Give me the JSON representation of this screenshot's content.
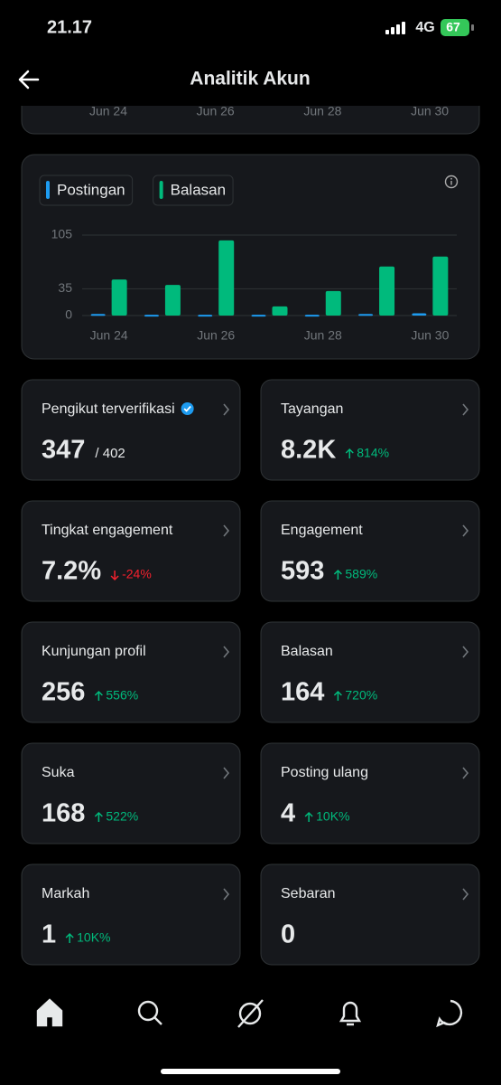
{
  "status_bar": {
    "time": "21.17",
    "network": "4G",
    "battery": "67"
  },
  "header": {
    "title": "Analitik Akun"
  },
  "top_card": {
    "categories": [
      "Jun 24",
      "Jun 26",
      "Jun 28",
      "Jun 30"
    ]
  },
  "chart_data": {
    "type": "bar",
    "categories": [
      "Jun 24",
      null,
      "Jun 26",
      null,
      "Jun 28",
      null,
      "Jun 30"
    ],
    "series": [
      {
        "name": "Postingan",
        "color": "#1d9bf0",
        "values": [
          2,
          1,
          1,
          1,
          1,
          2,
          3
        ]
      },
      {
        "name": "Balasan",
        "color": "#00ba7c",
        "values": [
          47,
          40,
          98,
          12,
          32,
          64,
          77
        ]
      }
    ],
    "ylim": [
      0,
      105
    ],
    "yticks": [
      0,
      35,
      105
    ],
    "grid": true
  },
  "metrics": [
    {
      "label": "Pengikut terverifikasi",
      "value": "347",
      "sub": "/ 402",
      "verified": true
    },
    {
      "label": "Tayangan",
      "value": "8.2K",
      "change": "814%",
      "trend": "up"
    },
    {
      "label": "Tingkat engagement",
      "value": "7.2%",
      "change": "-24%",
      "trend": "down"
    },
    {
      "label": "Engagement",
      "value": "593",
      "change": "589%",
      "trend": "up"
    },
    {
      "label": "Kunjungan profil",
      "value": "256",
      "change": "556%",
      "trend": "up"
    },
    {
      "label": "Balasan",
      "value": "164",
      "change": "720%",
      "trend": "up"
    },
    {
      "label": "Suka",
      "value": "168",
      "change": "522%",
      "trend": "up"
    },
    {
      "label": "Posting ulang",
      "value": "4",
      "change": "10K%",
      "trend": "up"
    },
    {
      "label": "Markah",
      "value": "1",
      "change": "10K%",
      "trend": "up"
    },
    {
      "label": "Sebaran",
      "value": "0"
    }
  ]
}
